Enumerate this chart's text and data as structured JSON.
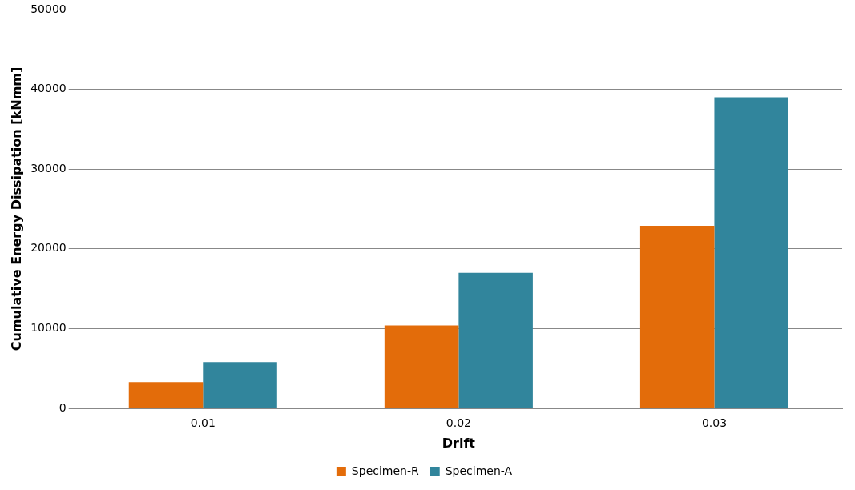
{
  "chart_data": {
    "type": "bar",
    "xlabel": "Drift",
    "ylabel": "Cumulative Energy Dissipation [kNmm]",
    "categories": [
      "0.01",
      "0.02",
      "0.03"
    ],
    "series": [
      {
        "name": "Specimen-R",
        "color": "#e36c0a",
        "values": [
          3300,
          10400,
          22900
        ]
      },
      {
        "name": "Specimen-A",
        "color": "#31859c",
        "values": [
          5800,
          17000,
          39000
        ]
      }
    ],
    "ylim": [
      0,
      50000
    ],
    "yticks": [
      0,
      10000,
      20000,
      30000,
      40000,
      50000
    ],
    "grid": "y",
    "legend": "bottom"
  }
}
